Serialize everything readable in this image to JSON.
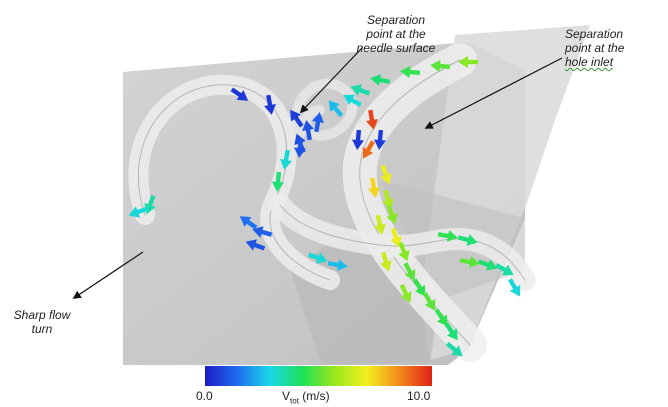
{
  "annotations": {
    "needle_separation": [
      "Separation",
      "point at the",
      "needle surface"
    ],
    "hole_separation": [
      "Separation",
      "point at the",
      "hole inlet"
    ],
    "flow_turn": [
      "Sharp flow",
      "turn"
    ]
  },
  "colorbar": {
    "min_label": "0.0",
    "max_label": "10.0",
    "quantity_main": "V",
    "quantity_sub": "tot",
    "unit": "(m/s)",
    "stops": [
      "#1c1cc8",
      "#1f6cf0",
      "#19d7e6",
      "#1fe05a",
      "#9be81e",
      "#f3ee1e",
      "#f48a1c",
      "#e0201a"
    ]
  },
  "colors": {
    "background_panel": "#cdcdcd",
    "streamline": "#f2f2f2",
    "leader_line": "#111111"
  }
}
